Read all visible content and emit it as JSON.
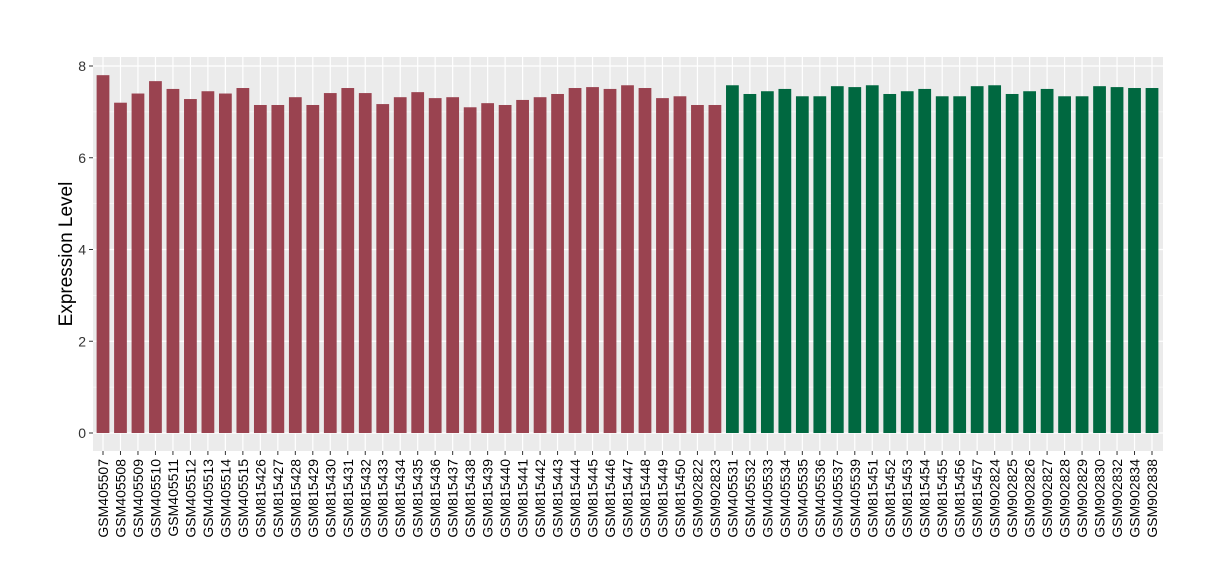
{
  "chart_data": {
    "type": "bar",
    "title": "",
    "xlabel": "",
    "ylabel": "Expression Level",
    "ylim": [
      0,
      8.2
    ],
    "yticks": [
      0,
      2,
      4,
      6,
      8
    ],
    "grid": true,
    "colors": {
      "group1": "#9a4350",
      "group2": "#006840",
      "panel": "#ebebeb"
    },
    "categories": [
      "GSM405507",
      "GSM405508",
      "GSM405509",
      "GSM405510",
      "GSM405511",
      "GSM405512",
      "GSM405513",
      "GSM405514",
      "GSM405515",
      "GSM815426",
      "GSM815427",
      "GSM815428",
      "GSM815429",
      "GSM815430",
      "GSM815431",
      "GSM815432",
      "GSM815433",
      "GSM815434",
      "GSM815435",
      "GSM815436",
      "GSM815437",
      "GSM815438",
      "GSM815439",
      "GSM815440",
      "GSM815441",
      "GSM815442",
      "GSM815443",
      "GSM815444",
      "GSM815445",
      "GSM815446",
      "GSM815447",
      "GSM815448",
      "GSM815449",
      "GSM815450",
      "GSM902822",
      "GSM902823",
      "GSM405531",
      "GSM405532",
      "GSM405533",
      "GSM405534",
      "GSM405535",
      "GSM405536",
      "GSM405537",
      "GSM405539",
      "GSM815451",
      "GSM815452",
      "GSM815453",
      "GSM815454",
      "GSM815455",
      "GSM815456",
      "GSM815457",
      "GSM902824",
      "GSM902825",
      "GSM902826",
      "GSM902827",
      "GSM902828",
      "GSM902829",
      "GSM902830",
      "GSM902832",
      "GSM902834",
      "GSM902838"
    ],
    "values": [
      7.8,
      7.2,
      7.4,
      7.67,
      7.5,
      7.28,
      7.45,
      7.4,
      7.52,
      7.15,
      7.15,
      7.32,
      7.15,
      7.41,
      7.52,
      7.41,
      7.17,
      7.32,
      7.43,
      7.3,
      7.32,
      7.1,
      7.19,
      7.15,
      7.26,
      7.32,
      7.39,
      7.52,
      7.54,
      7.5,
      7.58,
      7.52,
      7.3,
      7.34,
      7.15,
      7.15,
      7.58,
      7.39,
      7.45,
      7.5,
      7.34,
      7.34,
      7.56,
      7.54,
      7.58,
      7.39,
      7.45,
      7.5,
      7.34,
      7.34,
      7.56,
      7.58,
      7.39,
      7.45,
      7.5,
      7.34,
      7.34,
      7.56,
      7.54,
      7.52,
      7.52
    ],
    "groups": [
      1,
      1,
      1,
      1,
      1,
      1,
      1,
      1,
      1,
      1,
      1,
      1,
      1,
      1,
      1,
      1,
      1,
      1,
      1,
      1,
      1,
      1,
      1,
      1,
      1,
      1,
      1,
      1,
      1,
      1,
      1,
      1,
      1,
      1,
      1,
      1,
      2,
      2,
      2,
      2,
      2,
      2,
      2,
      2,
      2,
      2,
      2,
      2,
      2,
      2,
      2,
      2,
      2,
      2,
      2,
      2,
      2,
      2,
      2,
      2,
      2
    ]
  }
}
